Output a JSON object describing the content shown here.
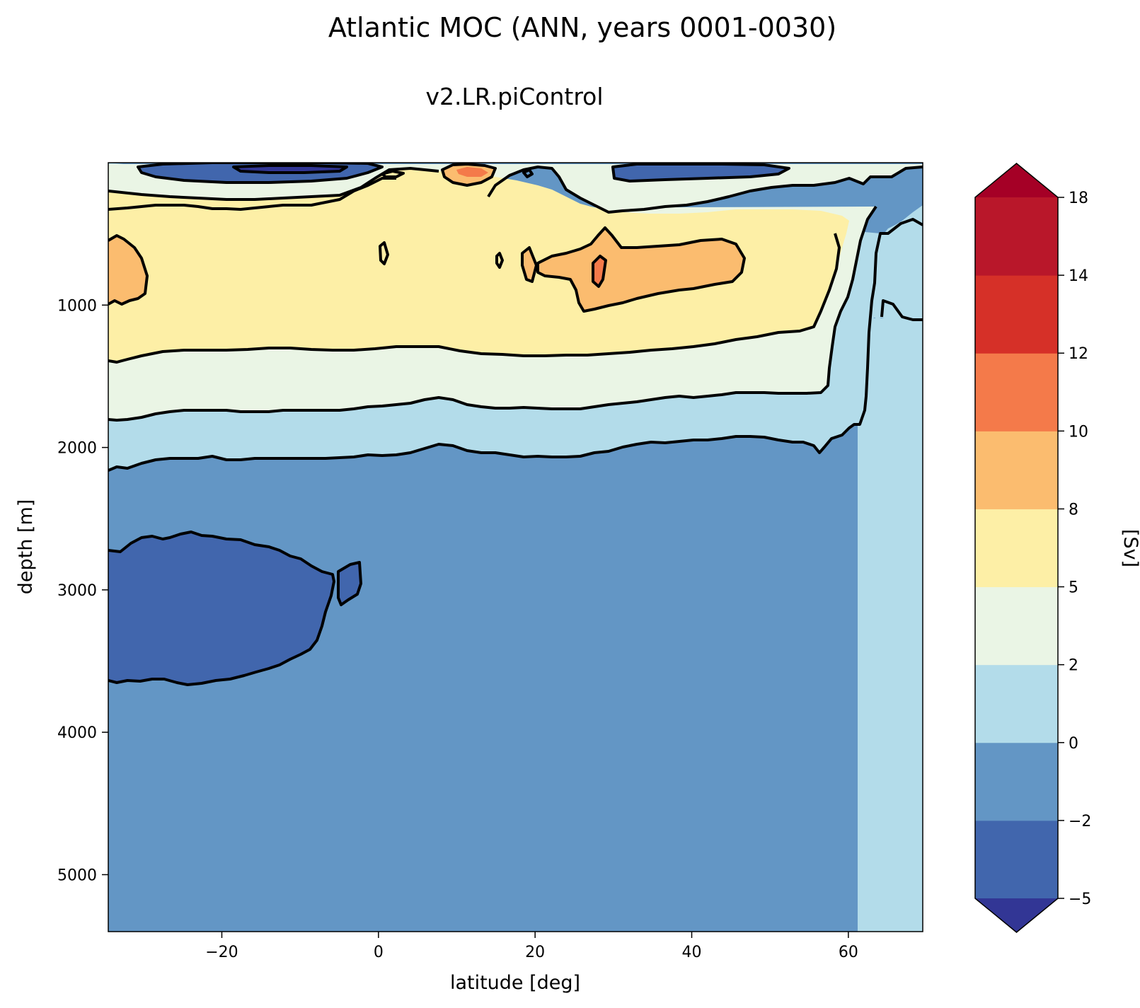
{
  "chart_data": {
    "type": "contourf",
    "title": "Atlantic MOC (ANN, years 0001-0030)",
    "subtitle": "v2.LR.piControl",
    "xlabel": "latitude [deg]",
    "ylabel": "depth [m]",
    "xlim": [
      -34.5,
      69.5
    ],
    "ylim": [
      5400,
      0
    ],
    "y_inverted": true,
    "xticks": [
      -20,
      0,
      20,
      40,
      60
    ],
    "xtick_labels": [
      "−20",
      "0",
      "20",
      "40",
      "60"
    ],
    "yticks": [
      1000,
      2000,
      3000,
      4000,
      5000
    ],
    "ytick_labels": [
      "1000",
      "2000",
      "3000",
      "4000",
      "5000"
    ],
    "colorbar": {
      "label": "[Sv]",
      "levels": [
        -5,
        -2,
        0,
        2,
        5,
        8,
        10,
        12,
        14,
        18
      ],
      "level_labels": [
        "−5",
        "−2",
        "0",
        "2",
        "5",
        "8",
        "10",
        "12",
        "14",
        "18"
      ],
      "colors": [
        "#4166ad",
        "#6396c5",
        "#b3dcea",
        "#eaf5e5",
        "#fdefa6",
        "#fbbc6f",
        "#f47a4a",
        "#d63028",
        "#b9172a"
      ],
      "under_color": "#323695",
      "over_color": "#a50026",
      "extend": "both"
    },
    "regions": [
      {
        "name": "deep negative cell",
        "level_range": [
          -5,
          -2
        ],
        "lat_range": [
          -34,
          -2
        ],
        "depth_range": [
          2580,
          3560
        ]
      },
      {
        "name": "upper cell core",
        "level_range": [
          8,
          10
        ],
        "lat_range": [
          20,
          46
        ],
        "depth_range": [
          570,
          1060
        ]
      },
      {
        "name": "southern upper maximum",
        "level_range": [
          8,
          10
        ],
        "lat_range": [
          -34,
          -29
        ],
        "depth_range": [
          530,
          1000
        ]
      },
      {
        "name": "subtropical maximum",
        "level_range": [
          10,
          12
        ],
        "lat_range": [
          27,
          28.5
        ],
        "depth_range": [
          660,
          870
        ]
      },
      {
        "name": "surface tropical cell",
        "level_range": [
          10,
          12
        ],
        "lat_range": [
          8,
          15
        ],
        "depth_range": [
          20,
          150
        ]
      },
      {
        "name": "surface negative cell",
        "level_range": [
          -5,
          -2
        ],
        "lat_range": [
          -31,
          -5
        ],
        "depth_range": [
          10,
          160
        ]
      }
    ]
  }
}
